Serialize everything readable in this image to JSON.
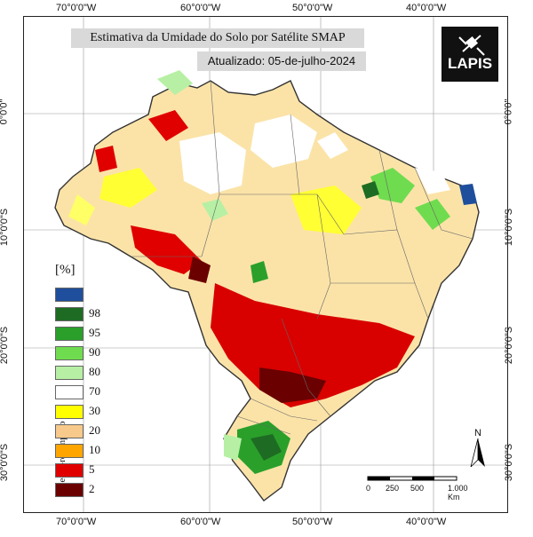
{
  "title": "Estimativa da Umidade do Solo por Satélite SMAP",
  "date": "Atualizado: 05-de-julho-2024",
  "logo": "LAPIS",
  "graticule": {
    "top_lon": [
      "70°0'0\"W",
      "60°0'0\"W",
      "50°0'0\"W",
      "40°0'0\"W"
    ],
    "bottom_lon": [
      "70°0'0\"W",
      "60°0'0\"W",
      "50°0'0\"W",
      "40°0'0\"W"
    ],
    "left_lat": [
      "0°0'0\"",
      "10°0'0\"S",
      "20°0'0\"S",
      "30°0'0\"S"
    ],
    "right_lat": [
      "0°0'0\"",
      "10°0'0\"S",
      "20°0'0\"S",
      "30°0'0\"S"
    ]
  },
  "legend": {
    "title": "[%]",
    "side_caption": "Secas-relâmpago",
    "items": [
      {
        "label": "",
        "color": "#1f4e9c"
      },
      {
        "label": "98",
        "color": "#1e6b23"
      },
      {
        "label": "95",
        "color": "#2aa02b"
      },
      {
        "label": "90",
        "color": "#6fdc4f"
      },
      {
        "label": "80",
        "color": "#b7f0a4"
      },
      {
        "label": "70",
        "color": "#ffffff"
      },
      {
        "label": "30",
        "color": "#ffff00"
      },
      {
        "label": "20",
        "color": "#f7c98b"
      },
      {
        "label": "10",
        "color": "#ffa500"
      },
      {
        "label": "5",
        "color": "#e00000"
      },
      {
        "label": "2",
        "color": "#6b0000"
      }
    ]
  },
  "scale_bar": {
    "ticks": [
      "0",
      "250",
      "500",
      "1.000 Km"
    ]
  },
  "north": "N"
}
